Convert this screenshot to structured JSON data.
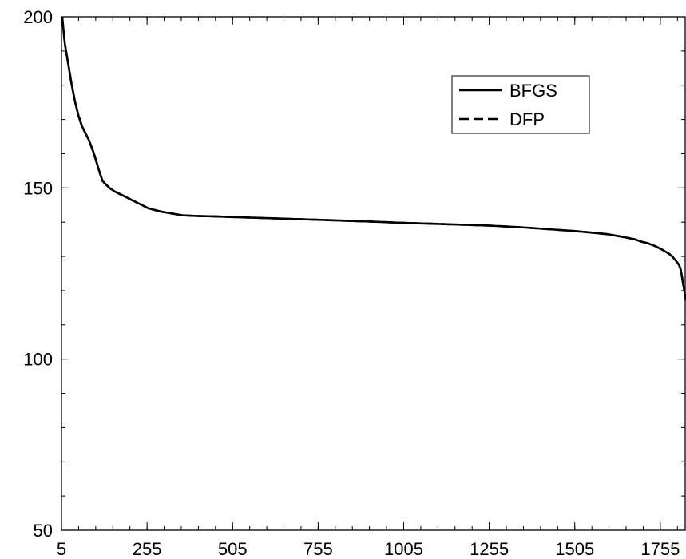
{
  "chart_data": {
    "type": "line",
    "title": "",
    "xlabel": "",
    "ylabel": "",
    "xlim": [
      5,
      1830
    ],
    "ylim": [
      50,
      200
    ],
    "xticks": [
      5,
      255,
      505,
      755,
      1005,
      1255,
      1505,
      1755
    ],
    "yticks": [
      50,
      100,
      150,
      200
    ],
    "grid": false,
    "legend_position": "top-right",
    "series": [
      {
        "name": "BFGS",
        "style": "solid",
        "color": "#000000",
        "x": [
          7,
          10,
          15,
          20,
          25,
          30,
          35,
          45,
          55,
          65,
          75,
          85,
          100,
          115,
          125,
          135,
          145,
          160,
          180,
          200,
          220,
          240,
          260,
          280,
          300,
          330,
          360,
          400,
          450,
          505,
          600,
          755,
          900,
          1005,
          1100,
          1255,
          1350,
          1450,
          1505,
          1550,
          1600,
          1640,
          1680,
          1700,
          1720,
          1740,
          1760,
          1780,
          1790,
          1800,
          1810,
          1815,
          1820,
          1825,
          1830
        ],
        "y": [
          200,
          197,
          192,
          189,
          186,
          183,
          180,
          175,
          171,
          168,
          166,
          164,
          160,
          155,
          152,
          151,
          150,
          149,
          148,
          147,
          146,
          145,
          144,
          143.5,
          143,
          142.5,
          142,
          141.8,
          141.7,
          141.5,
          141.2,
          140.7,
          140.2,
          139.8,
          139.5,
          139,
          138.5,
          137.8,
          137.4,
          137,
          136.5,
          135.8,
          135,
          134.3,
          133.8,
          133,
          132,
          130.8,
          130,
          128.8,
          127.5,
          126,
          123,
          120,
          117
        ]
      },
      {
        "name": "DFP",
        "style": "dashed",
        "color": "#000000",
        "x": [
          7,
          10,
          15,
          20,
          25,
          30,
          35,
          45,
          55,
          65,
          75,
          85,
          100,
          115,
          125,
          135,
          145,
          160,
          180,
          200,
          220,
          240,
          260,
          280,
          300,
          330,
          360,
          400,
          450,
          505,
          600,
          755,
          900,
          1005,
          1100,
          1255,
          1350,
          1450,
          1505,
          1550,
          1600,
          1640,
          1680,
          1700,
          1720,
          1740,
          1760,
          1780,
          1790,
          1800,
          1810,
          1815,
          1820,
          1825,
          1830
        ],
        "y": [
          200,
          197,
          192,
          189,
          186,
          183,
          180,
          175,
          171,
          168,
          166,
          164,
          160,
          155,
          152,
          151,
          150,
          149,
          148,
          147,
          146,
          145,
          144,
          143.5,
          143,
          142.5,
          142,
          141.8,
          141.7,
          141.5,
          141.2,
          140.7,
          140.2,
          139.8,
          139.5,
          139,
          138.5,
          137.8,
          137.4,
          137,
          136.5,
          135.8,
          135,
          134.3,
          133.8,
          133,
          132,
          130.8,
          130,
          128.8,
          127.5,
          126,
          123,
          120,
          117
        ]
      }
    ]
  }
}
